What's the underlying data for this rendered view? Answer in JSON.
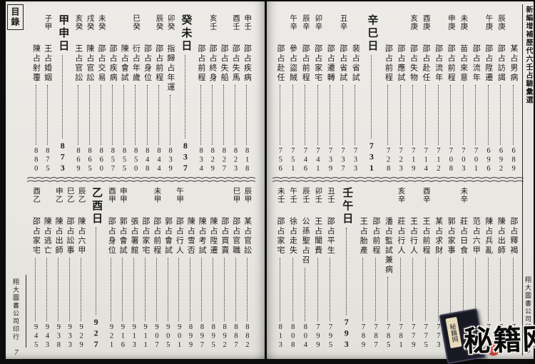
{
  "book": {
    "running_title": "新編增補歷代六壬占驗彙選",
    "toc_label": "目錄",
    "publisher": "翔大圖書公司印行"
  },
  "left_page": {
    "page_number": "7",
    "bands": [
      {
        "entries": [
          {
            "label": "申壬",
            "title": "邵占疾病",
            "page": "818"
          },
          {
            "label": "酉壬",
            "title": "邵占失馬",
            "page": "823"
          },
          {
            "label": "",
            "title": "邵占失船",
            "page": "827"
          },
          {
            "label": "亥壬",
            "title": "邵占終身",
            "page": "829"
          },
          {
            "label": "",
            "title": "邵占前程",
            "page": "834"
          },
          {
            "type": "day",
            "title": "癸未日",
            "page": "837"
          },
          {
            "label": "卯癸",
            "title": "指歸占年運",
            "page": "839"
          },
          {
            "label": "辰癸",
            "title": "邵占前程",
            "page": "844"
          },
          {
            "label": "",
            "title": "邵占身位",
            "page": "848"
          },
          {
            "label": "巳癸",
            "title": "衍占年歲",
            "page": "850"
          },
          {
            "label": "",
            "title": "陳占會試",
            "page": "855"
          },
          {
            "label": "",
            "title": "邵占疾病",
            "page": "857"
          },
          {
            "label": "未癸",
            "title": "邵占交易",
            "page": "860"
          },
          {
            "label": "戌癸",
            "title": "陳占官訟",
            "page": "865"
          },
          {
            "label": "亥癸",
            "title": "王占官訟",
            "page": "869"
          },
          {
            "type": "day",
            "title": "甲申日",
            "page": "873"
          },
          {
            "label": "子甲",
            "title": "王占婚姻",
            "page": "875"
          },
          {
            "label": "",
            "title": "陳占射覆",
            "page": "880"
          }
        ]
      },
      {
        "entries": [
          {
            "label": "辰甲",
            "title": "某占官訟",
            "page": "882"
          },
          {
            "label": "巳甲",
            "title": "邵占官職",
            "page": "887"
          },
          {
            "label": "",
            "title": "邵占買賣",
            "page": "892"
          },
          {
            "label": "",
            "title": "陳占陞遷",
            "page": "895"
          },
          {
            "label": "",
            "title": "陳占考試",
            "page": "897"
          },
          {
            "label": "",
            "title": "陳占雪否",
            "page": "899"
          },
          {
            "label": "午甲",
            "title": "邵占行人",
            "page": "901"
          },
          {
            "label": "",
            "title": "郭占會試",
            "page": "905"
          },
          {
            "label": "未甲",
            "title": "邵占前程",
            "page": "907"
          },
          {
            "label": "",
            "title": "邵占家宅",
            "page": "911"
          },
          {
            "label": "",
            "title": "張占署館",
            "page": "913"
          },
          {
            "label": "申甲",
            "title": "郭占會試",
            "page": "916"
          },
          {
            "label": "酉甲",
            "title": "邵占身位",
            "page": "921"
          },
          {
            "type": "day",
            "title": "乙酉日",
            "page": "927"
          },
          {
            "label": "辰乙",
            "title": "陳占六甲",
            "page": "929"
          },
          {
            "label": "巳乙",
            "title": "邵占訟事",
            "page": "933"
          },
          {
            "label": "申乙",
            "title": "陳占出師",
            "page": "938"
          },
          {
            "label": "",
            "title": "陳占逃亡",
            "page": "943"
          },
          {
            "label": "酉乙",
            "title": "邵占家宅",
            "page": "945"
          }
        ]
      }
    ]
  },
  "right_page": {
    "page_number": "6",
    "bands": [
      {
        "entries": [
          {
            "label": "",
            "title": "某占男病",
            "page": "689"
          },
          {
            "label": "辰庚",
            "title": "邵占訪謁",
            "page": "692"
          },
          {
            "label": "午庚",
            "title": "邵占陞遷",
            "page": "696"
          },
          {
            "label": "",
            "title": "邵占流年",
            "page": "701"
          },
          {
            "label": "未庚",
            "title": "苗占來意",
            "page": "703"
          },
          {
            "label": "申庚",
            "title": "邵占前程",
            "page": "708"
          },
          {
            "label": "",
            "title": "邵占流年",
            "page": "712"
          },
          {
            "label": "酉庚",
            "title": "邵占赴任",
            "page": "714"
          },
          {
            "label": "亥庚",
            "title": "邵占失物",
            "page": "719"
          },
          {
            "label": "",
            "title": "邵占應試",
            "page": "723"
          },
          {
            "label": "",
            "title": "邵占前程",
            "page": "728"
          },
          {
            "type": "day",
            "title": "辛巳日",
            "page": "731"
          },
          {
            "label": "",
            "title": "裴占省試",
            "page": "733"
          },
          {
            "label": "丑辛",
            "title": "邵占省試",
            "page": "737"
          },
          {
            "label": "",
            "title": "邵占遷轉",
            "page": "739"
          },
          {
            "label": "卯辛",
            "title": "邵占家宅",
            "page": "741"
          },
          {
            "label": "辰辛",
            "title": "邵占前程",
            "page": "746"
          },
          {
            "label": "午辛",
            "title": "參占盜賊",
            "page": "751"
          },
          {
            "label": "",
            "title": "邵占赴任",
            "page": "756"
          }
        ]
      },
      {
        "entries": [
          {
            "label": "",
            "title": "邵占釋褐",
            "page": "758"
          },
          {
            "label": "",
            "title": "陳占出師",
            "page": "760"
          },
          {
            "label": "",
            "title": "陳占兵亂",
            "page": "763"
          },
          {
            "label": "",
            "title": "范占六甲",
            "page": "766"
          },
          {
            "label": "未辛",
            "title": "莊占日食",
            "page": "769"
          },
          {
            "label": "",
            "title": "郭占家事",
            "page": "771"
          },
          {
            "label": "",
            "title": "某占求財",
            "page": "773"
          },
          {
            "label": "酉辛",
            "title": "王占前程",
            "page": "775"
          },
          {
            "label": "",
            "title": "王占行人",
            "page": "779"
          },
          {
            "label": "亥辛",
            "title": "莊占行人",
            "page": "781"
          },
          {
            "label": "",
            "title": "潘占監試兼病",
            "page": "785"
          },
          {
            "label": "",
            "title": "邵占前程",
            "page": "787"
          },
          {
            "label": "",
            "title": "王占胎產",
            "page": "789"
          },
          {
            "type": "day",
            "title": "壬午日",
            "page": "793"
          },
          {
            "label": "丑壬",
            "title": "邵占平生",
            "page": "795"
          },
          {
            "label": "卯壬",
            "title": "王占闈費",
            "page": "799"
          },
          {
            "label": "辰壬",
            "title": "公孫聖占召",
            "page": "804"
          },
          {
            "label": "午壬",
            "title": "徐占走失",
            "page": "808"
          },
          {
            "label": "未壬",
            "title": "邵占家宅",
            "page": "813"
          }
        ]
      }
    ]
  },
  "watermark": {
    "site_text": "秘籍网",
    "book_label": "秘籍网",
    "seal_color": "#b5281e"
  },
  "colors": {
    "paper": "#e9e7e2",
    "ink": "#1b1b1b",
    "background": "#0c0c0c"
  }
}
